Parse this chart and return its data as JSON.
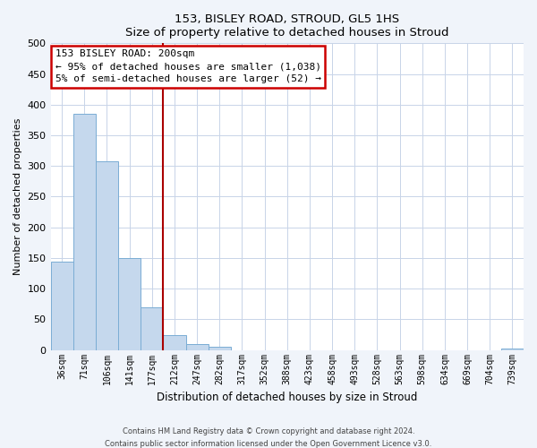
{
  "title": "153, BISLEY ROAD, STROUD, GL5 1HS",
  "subtitle": "Size of property relative to detached houses in Stroud",
  "xlabel": "Distribution of detached houses by size in Stroud",
  "ylabel": "Number of detached properties",
  "bar_labels": [
    "36sqm",
    "71sqm",
    "106sqm",
    "141sqm",
    "177sqm",
    "212sqm",
    "247sqm",
    "282sqm",
    "317sqm",
    "352sqm",
    "388sqm",
    "423sqm",
    "458sqm",
    "493sqm",
    "528sqm",
    "563sqm",
    "598sqm",
    "634sqm",
    "669sqm",
    "704sqm",
    "739sqm"
  ],
  "bar_values": [
    144,
    385,
    308,
    150,
    70,
    25,
    10,
    5,
    0,
    0,
    0,
    0,
    0,
    0,
    0,
    0,
    0,
    0,
    0,
    0,
    2
  ],
  "bar_color": "#c5d8ed",
  "bar_edge_color": "#7aadd4",
  "vline_x": 4.5,
  "vline_color": "#aa0000",
  "annotation_title": "153 BISLEY ROAD: 200sqm",
  "annotation_line1": "← 95% of detached houses are smaller (1,038)",
  "annotation_line2": "5% of semi-detached houses are larger (52) →",
  "annotation_box_color": "#ffffff",
  "annotation_box_edge": "#cc0000",
  "ylim": [
    0,
    500
  ],
  "yticks": [
    0,
    50,
    100,
    150,
    200,
    250,
    300,
    350,
    400,
    450,
    500
  ],
  "footer1": "Contains HM Land Registry data © Crown copyright and database right 2024.",
  "footer2": "Contains public sector information licensed under the Open Government Licence v3.0.",
  "bg_color": "#f0f4fa",
  "plot_bg_color": "#ffffff",
  "grid_color": "#c8d4e8"
}
